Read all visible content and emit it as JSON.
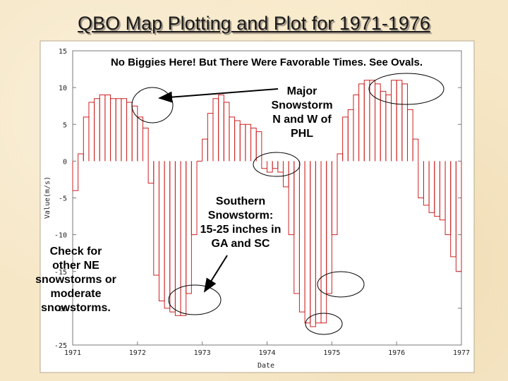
{
  "slide": {
    "title": "QBO Map Plotting and Plot for 1971-1976"
  },
  "annotations": {
    "top_note": "No Biggies Here!  But There Were Favorable Times.  See Ovals.",
    "major_lines": [
      "Major",
      "Snowstorm",
      "N and W of",
      "PHL"
    ],
    "southern_lines": [
      "Southern",
      "Snowstorm:",
      "15-25 inches in",
      "GA and SC"
    ],
    "check_lines": [
      "Check for",
      "other NE",
      "snowstorms or",
      "moderate",
      "snowstorms."
    ]
  },
  "colors": {
    "series": "#cc2222",
    "frame": "#7a7a7a",
    "arrow": "#000000"
  },
  "chart_data": {
    "type": "bar",
    "style": "step-outline",
    "xlabel": "Date",
    "ylabel": "Value(m/s)",
    "xlim": [
      1971,
      1977
    ],
    "ylim": [
      -25,
      15
    ],
    "x_ticks": [
      "1971",
      "1972",
      "1973",
      "1974",
      "1975",
      "1976",
      "1977"
    ],
    "y_ticks": [
      "15",
      "10",
      "5",
      "0",
      "-5",
      "-10",
      "-15",
      "-20",
      "-25"
    ],
    "grid": false,
    "start": "1971-01",
    "interval": "monthly",
    "values": [
      -4,
      1,
      6,
      8,
      8.5,
      9,
      9,
      8.5,
      8.5,
      8.5,
      8,
      7.5,
      6,
      4.5,
      -3,
      -15.5,
      -19,
      -20,
      -20.5,
      -21,
      -21,
      -18,
      -10,
      0,
      3,
      6.5,
      8.5,
      9,
      8,
      6,
      5.5,
      5,
      5,
      4.5,
      4,
      -1,
      -1.5,
      -1,
      -1.5,
      -3.5,
      -10,
      -18,
      -20.5,
      -22,
      -22.5,
      -22,
      -22,
      -18,
      -10,
      1,
      6,
      7,
      9,
      10.5,
      11,
      11,
      10.5,
      9.5,
      9,
      11,
      11,
      10.5,
      7,
      3,
      -5,
      -6,
      -7,
      -7.5,
      -8,
      -10,
      -13,
      -15
    ]
  }
}
